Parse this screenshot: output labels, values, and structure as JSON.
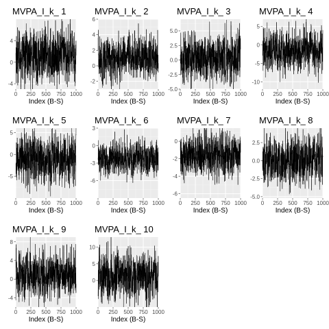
{
  "chart_data": [
    {
      "type": "line",
      "title": "MVPA_I_k_ 1",
      "xlabel": "Index (B-S)",
      "ylabel": "",
      "xlim": [
        0,
        1000
      ],
      "ylim": [
        -5,
        8
      ],
      "x_ticks": [
        0,
        250,
        500,
        750,
        1000
      ],
      "y_ticks": [
        -4,
        0,
        4
      ],
      "series": [
        {
          "n": 1000,
          "mean": 1.2,
          "sd": 2.3,
          "min": -5,
          "max": 8
        }
      ],
      "grid": true
    },
    {
      "type": "line",
      "title": "MVPA_I_k_ 2",
      "xlabel": "Index (B-S)",
      "ylabel": "",
      "xlim": [
        0,
        1000
      ],
      "ylim": [
        -3,
        6
      ],
      "x_ticks": [
        0,
        250,
        500,
        750,
        1000
      ],
      "y_ticks": [
        -2,
        0,
        2,
        4,
        6
      ],
      "series": [
        {
          "n": 1000,
          "mean": 1.0,
          "sd": 1.3,
          "min": -3,
          "max": 6
        }
      ],
      "grid": true
    },
    {
      "type": "line",
      "title": "MVPA_I_k_ 3",
      "xlabel": "Index (B-S)",
      "ylabel": "",
      "xlim": [
        0,
        1000
      ],
      "ylim": [
        -5,
        7
      ],
      "x_ticks": [
        0,
        250,
        500,
        750,
        1000
      ],
      "y_ticks": [
        -5.0,
        -2.5,
        0.0,
        2.5,
        5.0
      ],
      "series": [
        {
          "n": 1000,
          "mean": 0.5,
          "sd": 1.9,
          "min": -5,
          "max": 7
        }
      ],
      "grid": true
    },
    {
      "type": "line",
      "title": "MVPA_I_k_ 4",
      "xlabel": "Index (B-S)",
      "ylabel": "",
      "xlim": [
        0,
        1000
      ],
      "ylim": [
        -12,
        7
      ],
      "x_ticks": [
        0,
        250,
        500,
        750,
        1000
      ],
      "y_ticks": [
        -10,
        -5,
        0,
        5
      ],
      "series": [
        {
          "n": 1000,
          "mean": -1.5,
          "sd": 2.8,
          "min": -12,
          "max": 7
        }
      ],
      "grid": true
    },
    {
      "type": "line",
      "title": "MVPA_I_k_ 5",
      "xlabel": "Index (B-S)",
      "ylabel": "",
      "xlim": [
        0,
        1000
      ],
      "ylim": [
        -10,
        6
      ],
      "x_ticks": [
        0,
        250,
        500,
        750,
        1000
      ],
      "y_ticks": [
        -5,
        0,
        5
      ],
      "series": [
        {
          "n": 1000,
          "mean": -1.0,
          "sd": 2.6,
          "min": -10,
          "max": 6
        }
      ],
      "grid": true
    },
    {
      "type": "line",
      "title": "MVPA_I_k_ 6",
      "xlabel": "Index (B-S)",
      "ylabel": "",
      "xlim": [
        0,
        1000
      ],
      "ylim": [
        -9,
        3
      ],
      "x_ticks": [
        0,
        250,
        500,
        750,
        1000
      ],
      "y_ticks": [
        -6,
        -3,
        0,
        3
      ],
      "series": [
        {
          "n": 1000,
          "mean": -2.3,
          "sd": 1.4,
          "min": -9,
          "max": 3
        }
      ],
      "grid": true
    },
    {
      "type": "line",
      "title": "MVPA_I_k_ 7",
      "xlabel": "Index (B-S)",
      "ylabel": "",
      "xlim": [
        0,
        1000
      ],
      "ylim": [
        -6.5,
        1.5
      ],
      "x_ticks": [
        0,
        250,
        500,
        750,
        1000
      ],
      "y_ticks": [
        -6,
        -4,
        -2,
        0
      ],
      "series": [
        {
          "n": 1000,
          "mean": -1.5,
          "sd": 1.2,
          "min": -6.5,
          "max": 1.5
        }
      ],
      "grid": true
    },
    {
      "type": "line",
      "title": "MVPA_I_k_ 8",
      "xlabel": "Index (B-S)",
      "ylabel": "",
      "xlim": [
        0,
        1000
      ],
      "ylim": [
        -5.2,
        4.5
      ],
      "x_ticks": [
        0,
        250,
        500,
        750,
        1000
      ],
      "y_ticks": [
        -5.0,
        -2.5,
        0.0,
        2.5
      ],
      "series": [
        {
          "n": 1000,
          "mean": 0.0,
          "sd": 1.6,
          "min": -5.2,
          "max": 4.5
        }
      ],
      "grid": true
    },
    {
      "type": "line",
      "title": "MVPA_I_k_ 9",
      "xlabel": "Index (B-S)",
      "ylabel": "",
      "xlim": [
        0,
        1000
      ],
      "ylim": [
        -6,
        9
      ],
      "x_ticks": [
        0,
        250,
        500,
        750,
        1000
      ],
      "y_ticks": [
        -4,
        0,
        4,
        8
      ],
      "series": [
        {
          "n": 1000,
          "mean": 1.0,
          "sd": 2.3,
          "min": -6,
          "max": 9
        }
      ],
      "grid": true
    },
    {
      "type": "line",
      "title": "MVPA_I_k_ 10",
      "xlabel": "Index (B-S)",
      "ylabel": "",
      "xlim": [
        0,
        1000
      ],
      "ylim": [
        -8,
        13
      ],
      "x_ticks": [
        0,
        250,
        500,
        750,
        1000
      ],
      "y_ticks": [
        0,
        5,
        10
      ],
      "series": [
        {
          "n": 1000,
          "mean": 1.5,
          "sd": 3.3,
          "min": -8,
          "max": 13
        }
      ],
      "grid": true
    }
  ],
  "colors": {
    "panel_bg": "#ebebeb",
    "grid_major": "#ffffff",
    "grid_minor": "#f5f5f5",
    "line": "#000000",
    "tick_text": "#4d4d4d",
    "tick_mark": "#333333",
    "title": "#000000"
  }
}
